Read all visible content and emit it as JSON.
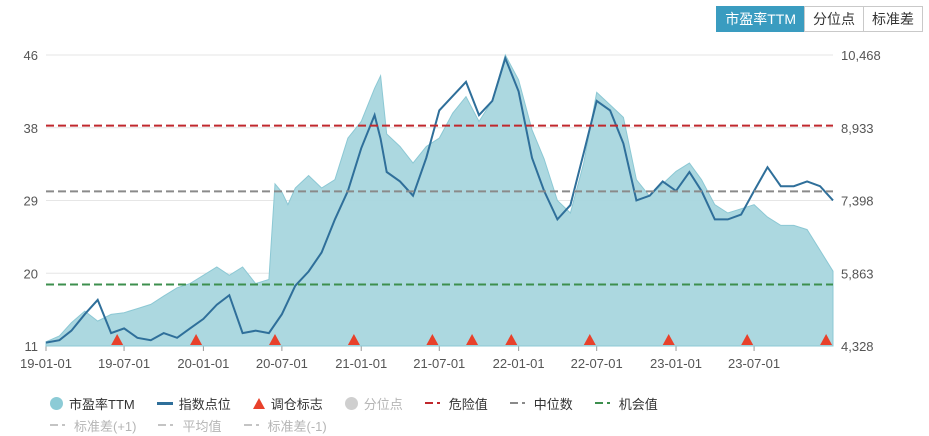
{
  "toggle": {
    "buttons": [
      "市盈率TTM",
      "分位点",
      "标准差"
    ],
    "active": 0
  },
  "colors": {
    "pe_fill": "#a8d6de",
    "pe_stroke": "#8cc8d4",
    "index_line": "#2f6f9a",
    "danger": "#c0282d",
    "median": "#8a8a8a",
    "opportunity": "#3d8f4e",
    "marker": "#e8412b",
    "percentile": "#cfcfcf",
    "muted": "#b5b5b5"
  },
  "legend": {
    "row1": [
      {
        "label": "市盈率TTM",
        "symbol": "dot",
        "color": "#8ccbd6",
        "muted": false
      },
      {
        "label": "指数点位",
        "symbol": "line",
        "color": "#2f6f9a",
        "muted": false
      },
      {
        "label": "调仓标志",
        "symbol": "triangle",
        "color": "#e8412b",
        "muted": false
      },
      {
        "label": "分位点",
        "symbol": "dot",
        "color": "#cfcfcf",
        "muted": true
      },
      {
        "label": "危险值",
        "symbol": "dashdot",
        "color": "#c0282d",
        "muted": false
      },
      {
        "label": "中位数",
        "symbol": "dashdot",
        "color": "#8a8a8a",
        "muted": false
      },
      {
        "label": "机会值",
        "symbol": "dashdot",
        "color": "#3d8f4e",
        "muted": false
      }
    ],
    "row2": [
      {
        "label": "标准差(+1)",
        "symbol": "dashdot",
        "color": "#c4c4c4",
        "muted": true
      },
      {
        "label": "平均值",
        "symbol": "dashdot",
        "color": "#c4c4c4",
        "muted": true
      },
      {
        "label": "标准差(-1)",
        "symbol": "dashdot",
        "color": "#c4c4c4",
        "muted": true
      }
    ]
  },
  "chart_data": {
    "type": "area",
    "x_start": "2019-01-01",
    "x_end": "2023-12-31",
    "x_tick_labels": [
      "19-01-01",
      "19-07-01",
      "20-01-01",
      "20-07-01",
      "21-01-01",
      "21-07-01",
      "22-01-01",
      "22-07-01",
      "23-01-01",
      "23-07-01"
    ],
    "y_left": {
      "ylim": [
        11,
        46
      ],
      "ticks": [
        "11",
        "20",
        "29",
        "38",
        "46"
      ]
    },
    "y_right": {
      "ylim": [
        4328,
        10468
      ],
      "ticks": [
        "4,328",
        "5,863",
        "7,398",
        "8,933",
        "10,468"
      ]
    },
    "reference_lines": [
      {
        "name": "危险值",
        "value": 37.5
      },
      {
        "name": "中位数",
        "value": 29.6
      },
      {
        "name": "机会值",
        "value": 18.4
      }
    ],
    "series": [
      {
        "name": "市盈率TTM",
        "axis": "left",
        "x": [
          "2019-01-01",
          "2019-02-01",
          "2019-03-01",
          "2019-04-01",
          "2019-05-01",
          "2019-06-01",
          "2019-07-01",
          "2019-08-01",
          "2019-09-01",
          "2019-10-01",
          "2019-11-01",
          "2019-12-01",
          "2020-01-01",
          "2020-02-01",
          "2020-03-01",
          "2020-04-01",
          "2020-05-01",
          "2020-06-01",
          "2020-06-15",
          "2020-07-01",
          "2020-07-15",
          "2020-08-01",
          "2020-09-01",
          "2020-10-01",
          "2020-11-01",
          "2020-12-01",
          "2021-01-01",
          "2021-02-01",
          "2021-02-15",
          "2021-03-01",
          "2021-04-01",
          "2021-05-01",
          "2021-06-01",
          "2021-07-01",
          "2021-08-01",
          "2021-09-01",
          "2021-10-01",
          "2021-11-01",
          "2021-12-01",
          "2022-01-01",
          "2022-02-01",
          "2022-03-01",
          "2022-04-01",
          "2022-05-01",
          "2022-06-01",
          "2022-07-01",
          "2022-08-01",
          "2022-09-01",
          "2022-10-01",
          "2022-11-01",
          "2022-12-01",
          "2023-01-01",
          "2023-02-01",
          "2023-03-01",
          "2023-04-01",
          "2023-05-01",
          "2023-06-01",
          "2023-07-01",
          "2023-08-01",
          "2023-09-01",
          "2023-10-01",
          "2023-11-01",
          "2023-12-01",
          "2023-12-31"
        ],
        "values": [
          11.5,
          12.2,
          13.8,
          15.2,
          14.0,
          14.8,
          15.0,
          15.5,
          16.0,
          17.0,
          18.0,
          18.5,
          19.5,
          20.5,
          19.5,
          20.5,
          18.5,
          19.0,
          30.5,
          29.5,
          28.0,
          30.0,
          31.5,
          30.0,
          31.0,
          36.0,
          38.0,
          42.0,
          43.5,
          36.5,
          35.0,
          33.0,
          35.0,
          36.0,
          39.0,
          41.0,
          38.0,
          40.5,
          46.0,
          43.0,
          37.0,
          33.5,
          28.5,
          27.0,
          33.0,
          41.5,
          40.0,
          38.5,
          31.0,
          29.0,
          30.5,
          32.0,
          33.0,
          31.0,
          28.0,
          27.0,
          27.5,
          28.0,
          26.5,
          25.5,
          25.5,
          25.0,
          22.5,
          20.0
        ]
      },
      {
        "name": "指数点位",
        "axis": "right",
        "x": [
          "2019-01-01",
          "2019-02-01",
          "2019-03-01",
          "2019-04-01",
          "2019-05-01",
          "2019-06-01",
          "2019-07-01",
          "2019-08-01",
          "2019-09-01",
          "2019-10-01",
          "2019-11-01",
          "2019-12-01",
          "2020-01-01",
          "2020-02-01",
          "2020-03-01",
          "2020-04-01",
          "2020-05-01",
          "2020-06-01",
          "2020-07-01",
          "2020-08-01",
          "2020-09-01",
          "2020-10-01",
          "2020-11-01",
          "2020-12-01",
          "2021-01-01",
          "2021-02-01",
          "2021-02-15",
          "2021-03-01",
          "2021-04-01",
          "2021-05-01",
          "2021-06-01",
          "2021-07-01",
          "2021-08-01",
          "2021-09-01",
          "2021-10-01",
          "2021-11-01",
          "2021-12-01",
          "2022-01-01",
          "2022-02-01",
          "2022-03-01",
          "2022-04-01",
          "2022-05-01",
          "2022-06-01",
          "2022-07-01",
          "2022-08-01",
          "2022-09-01",
          "2022-10-01",
          "2022-11-01",
          "2022-12-01",
          "2023-01-01",
          "2023-02-01",
          "2023-03-01",
          "2023-04-01",
          "2023-05-01",
          "2023-06-01",
          "2023-07-01",
          "2023-08-01",
          "2023-09-01",
          "2023-10-01",
          "2023-11-01",
          "2023-12-01",
          "2023-12-31"
        ],
        "values": [
          4400,
          4450,
          4650,
          5000,
          5300,
          4600,
          4700,
          4500,
          4450,
          4600,
          4500,
          4700,
          4900,
          5200,
          5400,
          4600,
          4650,
          4600,
          5000,
          5600,
          5900,
          6300,
          7000,
          7600,
          8500,
          9200,
          8700,
          8000,
          7800,
          7500,
          8300,
          9300,
          9600,
          9900,
          9200,
          9500,
          10400,
          9700,
          8300,
          7600,
          7000,
          7300,
          8400,
          9500,
          9300,
          8600,
          7400,
          7500,
          7800,
          7600,
          8000,
          7600,
          7000,
          7000,
          7100,
          7600,
          8100,
          7700,
          7700,
          7800,
          7700,
          7400
        ]
      },
      {
        "name": "调仓标志",
        "type": "marker",
        "x": [
          "2019-06-15",
          "2019-12-15",
          "2020-06-15",
          "2020-12-15",
          "2021-06-15",
          "2021-09-15",
          "2021-12-15",
          "2022-06-15",
          "2022-12-15",
          "2023-06-15",
          "2023-12-15"
        ]
      }
    ]
  }
}
